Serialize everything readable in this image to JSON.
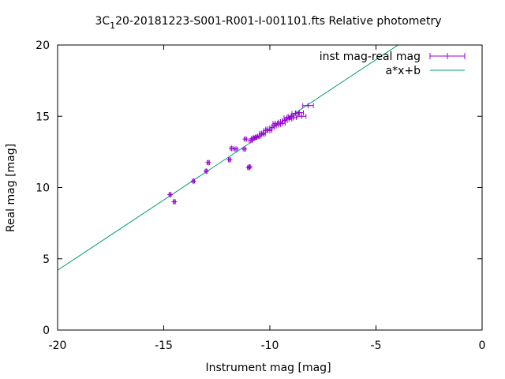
{
  "chart_data": {
    "type": "scatter",
    "title": {
      "prefix": "3C",
      "subscript": "1",
      "rest": "20-20181223-S001-R001-I-001101.fts Relative photometry"
    },
    "xlabel": "Instrument mag [mag]",
    "ylabel": "Real mag [mag]",
    "xlim": [
      -20,
      0
    ],
    "ylim": [
      0,
      20
    ],
    "xticks": [
      -20,
      -15,
      -10,
      -5,
      0
    ],
    "yticks": [
      0,
      5,
      10,
      15,
      20
    ],
    "xtick_labels": [
      "-20",
      "-15",
      "-10",
      "-5",
      "0"
    ],
    "ytick_labels": [
      "0",
      "5",
      "10",
      "15",
      "20"
    ],
    "grid": false,
    "legend_position": "top-right",
    "series": [
      {
        "name": "inst mag-real mag",
        "kind": "points-with-xerrorbars",
        "color": "#9400d3",
        "points": [
          {
            "x": -14.7,
            "y": 9.5,
            "xerr": 0.05
          },
          {
            "x": -14.5,
            "y": 9.0,
            "xerr": 0.05
          },
          {
            "x": -13.6,
            "y": 10.45,
            "xerr": 0.05
          },
          {
            "x": -13.0,
            "y": 11.15,
            "xerr": 0.05
          },
          {
            "x": -12.9,
            "y": 11.75,
            "xerr": 0.05
          },
          {
            "x": -11.9,
            "y": 11.95,
            "xerr": 0.05
          },
          {
            "x": -11.8,
            "y": 12.75,
            "xerr": 0.06
          },
          {
            "x": -11.6,
            "y": 12.7,
            "xerr": 0.06
          },
          {
            "x": -11.2,
            "y": 12.7,
            "xerr": 0.06
          },
          {
            "x": -11.15,
            "y": 13.4,
            "xerr": 0.06
          },
          {
            "x": -11.0,
            "y": 11.4,
            "xerr": 0.05
          },
          {
            "x": -10.95,
            "y": 11.45,
            "xerr": 0.05
          },
          {
            "x": -10.9,
            "y": 13.3,
            "xerr": 0.07
          },
          {
            "x": -10.8,
            "y": 13.45,
            "xerr": 0.07
          },
          {
            "x": -10.7,
            "y": 13.5,
            "xerr": 0.07
          },
          {
            "x": -10.6,
            "y": 13.55,
            "xerr": 0.08
          },
          {
            "x": -10.5,
            "y": 13.6,
            "xerr": 0.08
          },
          {
            "x": -10.4,
            "y": 13.8,
            "xerr": 0.08
          },
          {
            "x": -10.3,
            "y": 13.75,
            "xerr": 0.08
          },
          {
            "x": -10.2,
            "y": 14.0,
            "xerr": 0.09
          },
          {
            "x": -10.1,
            "y": 14.1,
            "xerr": 0.09
          },
          {
            "x": -10.0,
            "y": 14.0,
            "xerr": 0.09
          },
          {
            "x": -9.9,
            "y": 14.2,
            "xerr": 0.1
          },
          {
            "x": -9.8,
            "y": 14.3,
            "xerr": 0.1
          },
          {
            "x": -9.75,
            "y": 14.5,
            "xerr": 0.1
          },
          {
            "x": -9.6,
            "y": 14.4,
            "xerr": 0.11
          },
          {
            "x": -9.5,
            "y": 14.6,
            "xerr": 0.11
          },
          {
            "x": -9.4,
            "y": 14.5,
            "xerr": 0.12
          },
          {
            "x": -9.3,
            "y": 14.7,
            "xerr": 0.12
          },
          {
            "x": -9.2,
            "y": 14.9,
            "xerr": 0.13
          },
          {
            "x": -9.1,
            "y": 14.8,
            "xerr": 0.13
          },
          {
            "x": -9.0,
            "y": 15.0,
            "xerr": 0.14
          },
          {
            "x": -8.9,
            "y": 14.9,
            "xerr": 0.15
          },
          {
            "x": -8.8,
            "y": 15.2,
            "xerr": 0.16
          },
          {
            "x": -8.6,
            "y": 15.25,
            "xerr": 0.18
          },
          {
            "x": -8.5,
            "y": 15.0,
            "xerr": 0.2
          },
          {
            "x": -8.2,
            "y": 15.75,
            "xerr": 0.25
          }
        ]
      },
      {
        "name": "a*x+b",
        "kind": "line",
        "color": "#009e73",
        "slope": 0.985,
        "intercept": 23.9
      }
    ]
  }
}
